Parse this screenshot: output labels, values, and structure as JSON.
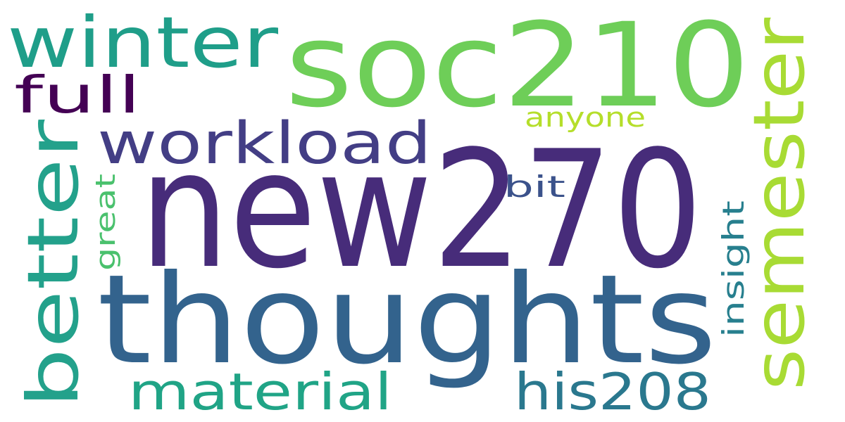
{
  "words": [
    {
      "id": "new270",
      "text": "new270",
      "color": "#472c7a",
      "rotated": false
    },
    {
      "id": "thoughts",
      "text": "thoughts",
      "color": "#33638d",
      "rotated": false
    },
    {
      "id": "soc210",
      "text": "soc210",
      "color": "#6ece58",
      "rotated": false
    },
    {
      "id": "semester",
      "text": "semester",
      "color": "#a8db34",
      "rotated": true
    },
    {
      "id": "winter",
      "text": "winter",
      "color": "#1f9e89",
      "rotated": false
    },
    {
      "id": "better",
      "text": "better",
      "color": "#23a18b",
      "rotated": true
    },
    {
      "id": "workload",
      "text": "workload",
      "color": "#433e85",
      "rotated": false
    },
    {
      "id": "material",
      "text": "material",
      "color": "#20a486",
      "rotated": false
    },
    {
      "id": "his208",
      "text": "his208",
      "color": "#2a788e",
      "rotated": false
    },
    {
      "id": "full",
      "text": "full",
      "color": "#440154",
      "rotated": false
    },
    {
      "id": "anyone",
      "text": "anyone",
      "color": "#b5de2b",
      "rotated": false
    },
    {
      "id": "bit",
      "text": "bit",
      "color": "#3b528b",
      "rotated": false
    },
    {
      "id": "insight",
      "text": "insight",
      "color": "#277f8e",
      "rotated": true
    },
    {
      "id": "great",
      "text": "great",
      "color": "#4ac16d",
      "rotated": true
    }
  ]
}
